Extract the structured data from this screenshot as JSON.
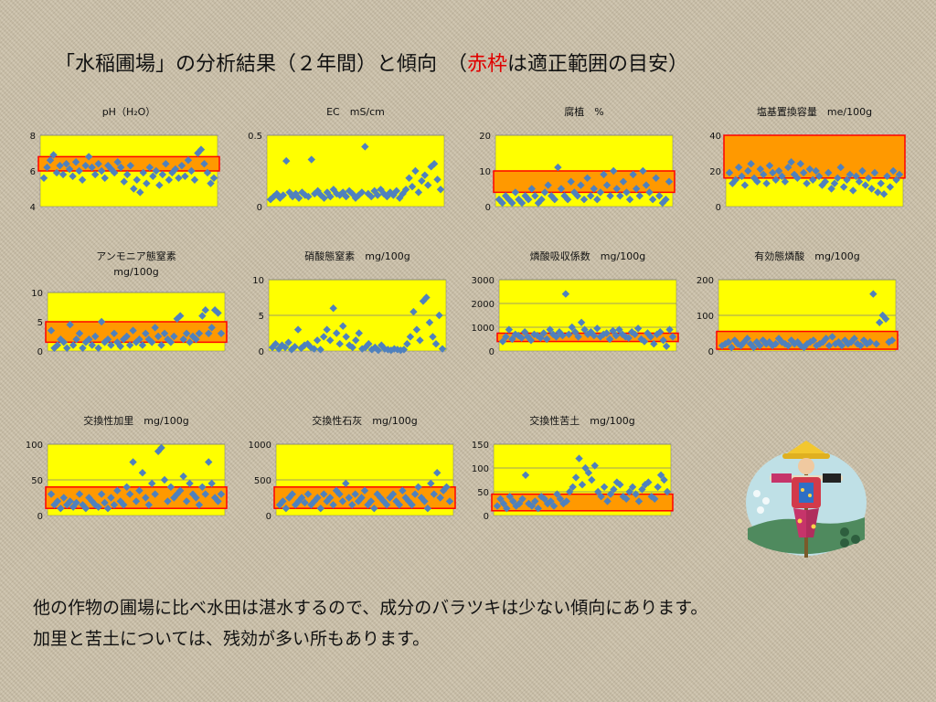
{
  "title": {
    "before": "「水稲圃場」の分析結果（２年間）と傾向　（",
    "highlight": "赤枠",
    "after": "は適正範囲の目安）"
  },
  "colors": {
    "plot_bg": "#ffff00",
    "marker": "#4f81bd",
    "range_fill": "#ff9900",
    "range_border": "#ff0000"
  },
  "footnote": {
    "line1": "他の作物の圃場に比べ水田は湛水するので、成分のバラツキは少ない傾向にあります。",
    "line2": "加里と苦土については、残効が多い所もあります。"
  },
  "illustration": {
    "name": "scarecrow-icon"
  },
  "chart_data": [
    {
      "type": "scatter",
      "title_lines": [
        "pH（H₂O）"
      ],
      "ylim": [
        4,
        8
      ],
      "yticks": [
        "4",
        "6",
        "8"
      ],
      "grid": true,
      "range": [
        6,
        6.8
      ],
      "values": [
        5.6,
        6.2,
        6.6,
        6.9,
        5.9,
        6.3,
        5.8,
        6.4,
        6.1,
        5.7,
        6.5,
        6.0,
        5.5,
        6.3,
        6.8,
        6.2,
        5.8,
        6.4,
        6.0,
        5.6,
        6.3,
        6.1,
        5.9,
        6.5,
        6.2,
        5.4,
        5.8,
        6.3,
        5.0,
        5.5,
        4.8,
        5.9,
        5.3,
        6.2,
        5.7,
        6.0,
        5.2,
        5.8,
        6.4,
        5.5,
        5.9,
        6.1,
        5.6,
        6.3,
        5.7,
        6.6,
        6.0,
        5.5,
        7.0,
        7.2,
        6.4,
        5.9,
        5.3,
        5.6
      ]
    },
    {
      "type": "scatter",
      "title_lines": [
        "EC　mS/cm"
      ],
      "ylim": [
        0,
        0.5
      ],
      "yticks": [
        "0",
        "0.5"
      ],
      "grid": true,
      "range": null,
      "values": [
        0.05,
        0.07,
        0.09,
        0.06,
        0.08,
        0.32,
        0.1,
        0.07,
        0.09,
        0.06,
        0.1,
        0.08,
        0.07,
        0.33,
        0.09,
        0.11,
        0.08,
        0.06,
        0.1,
        0.07,
        0.12,
        0.09,
        0.08,
        0.1,
        0.07,
        0.11,
        0.09,
        0.06,
        0.08,
        0.1,
        0.42,
        0.09,
        0.07,
        0.11,
        0.08,
        0.12,
        0.09,
        0.07,
        0.1,
        0.08,
        0.11,
        0.06,
        0.09,
        0.12,
        0.2,
        0.14,
        0.25,
        0.1,
        0.18,
        0.22,
        0.15,
        0.28,
        0.3,
        0.19,
        0.12
      ]
    },
    {
      "type": "scatter",
      "title_lines": [
        "腐植　%"
      ],
      "ylim": [
        0,
        20
      ],
      "yticks": [
        "0",
        "10",
        "20"
      ],
      "grid": true,
      "range": [
        4,
        10
      ],
      "values": [
        2,
        1,
        3,
        2,
        1,
        4,
        2,
        1,
        3,
        2,
        5,
        3,
        1,
        2,
        4,
        6,
        3,
        2,
        11,
        5,
        3,
        2,
        7,
        4,
        3,
        6,
        2,
        8,
        3,
        5,
        2,
        4,
        9,
        6,
        3,
        10,
        5,
        3,
        7,
        4,
        2,
        9,
        5,
        3,
        10,
        6,
        4,
        2,
        8,
        3,
        1,
        2,
        7
      ]
    },
    {
      "type": "scatter",
      "title_lines": [
        "塩基置換容量　me/100g"
      ],
      "ylim": [
        0,
        40
      ],
      "yticks": [
        "0",
        "20",
        "40"
      ],
      "grid": true,
      "range": [
        16,
        40
      ],
      "values": [
        19,
        13,
        15,
        22,
        17,
        12,
        20,
        24,
        16,
        14,
        21,
        18,
        13,
        23,
        19,
        15,
        20,
        17,
        14,
        22,
        25,
        18,
        16,
        24,
        19,
        13,
        21,
        15,
        20,
        17,
        12,
        14,
        19,
        10,
        13,
        16,
        22,
        11,
        15,
        18,
        9,
        17,
        14,
        20,
        12,
        16,
        10,
        19,
        8,
        13,
        7,
        17,
        11,
        20,
        15,
        18
      ]
    },
    {
      "type": "scatter",
      "title_lines": [
        "アンモニア態窒素",
        "mg/100g"
      ],
      "ylim": [
        0,
        10
      ],
      "yticks": [
        "0",
        "5",
        "10"
      ],
      "grid": true,
      "range": [
        1.5,
        5
      ],
      "values": [
        3.5,
        0.5,
        1,
        2,
        1.5,
        0.5,
        4.5,
        1,
        2,
        3,
        0.5,
        1.5,
        2,
        1,
        2.5,
        0.5,
        5,
        1.5,
        2,
        1,
        3,
        1.5,
        0.8,
        2,
        2.5,
        1,
        3.5,
        1.5,
        2,
        1,
        3,
        2,
        1.5,
        4,
        2.5,
        1,
        3,
        2,
        1.5,
        2.5,
        5.5,
        6,
        2,
        3,
        1.5,
        2.5,
        2,
        3,
        6,
        7,
        3,
        4,
        7,
        6.5,
        3
      ]
    },
    {
      "type": "scatter",
      "title_lines": [
        "硝酸態窒素　mg/100g"
      ],
      "ylim": [
        0,
        10
      ],
      "yticks": [
        "0",
        "5",
        "10"
      ],
      "grid": true,
      "range": null,
      "values": [
        0.5,
        1,
        0.3,
        0.8,
        0.5,
        1.2,
        0.2,
        0.6,
        3,
        0.4,
        0.8,
        1,
        0.5,
        0.3,
        1.5,
        0.2,
        2,
        3,
        1.5,
        6,
        2.5,
        1,
        3.5,
        2,
        0.8,
        0.5,
        1.5,
        2.5,
        0.3,
        0.5,
        1,
        0.2,
        0.5,
        0.1,
        0.8,
        0.3,
        0.2,
        0.1,
        0.3,
        0.2,
        0.1,
        0.2,
        1,
        2,
        5.5,
        3,
        1.5,
        7,
        7.5,
        4,
        2,
        1,
        5,
        0.3
      ]
    },
    {
      "type": "scatter",
      "title_lines": [
        "燐酸吸収係数　mg/100g"
      ],
      "ylim": [
        0,
        3000
      ],
      "yticks": [
        "0",
        "1000",
        "2000",
        "3000"
      ],
      "grid": true,
      "range": [
        400,
        750
      ],
      "values": [
        400,
        600,
        900,
        500,
        700,
        650,
        550,
        800,
        600,
        450,
        700,
        650,
        550,
        750,
        500,
        900,
        700,
        600,
        800,
        650,
        2400,
        700,
        1000,
        800,
        600,
        1200,
        900,
        700,
        800,
        650,
        950,
        600,
        700,
        750,
        500,
        850,
        650,
        900,
        700,
        600,
        550,
        800,
        700,
        950,
        500,
        400,
        750,
        600,
        300,
        700,
        800,
        450,
        200,
        900,
        600
      ]
    },
    {
      "type": "scatter",
      "title_lines": [
        "有効態燐酸　mg/100g"
      ],
      "ylim": [
        0,
        200
      ],
      "yticks": [
        "0",
        "100",
        "200"
      ],
      "grid": true,
      "range": [
        5,
        55
      ],
      "values": [
        15,
        20,
        25,
        10,
        30,
        20,
        15,
        25,
        35,
        20,
        10,
        25,
        15,
        30,
        20,
        25,
        15,
        20,
        35,
        25,
        20,
        15,
        30,
        20,
        25,
        15,
        10,
        20,
        25,
        30,
        15,
        20,
        25,
        35,
        15,
        40,
        20,
        25,
        15,
        30,
        20,
        25,
        35,
        20,
        15,
        30,
        20,
        25,
        160,
        20,
        80,
        100,
        90,
        25,
        30
      ]
    },
    {
      "type": "scatter",
      "title_lines": [
        "交換性加里　mg/100g"
      ],
      "ylim": [
        0,
        100
      ],
      "yticks": [
        "0",
        "50",
        "100"
      ],
      "grid": true,
      "range": [
        10,
        40
      ],
      "values": [
        30,
        15,
        20,
        10,
        25,
        15,
        20,
        12,
        18,
        30,
        15,
        10,
        25,
        20,
        15,
        12,
        30,
        18,
        10,
        25,
        15,
        35,
        20,
        15,
        40,
        30,
        75,
        20,
        35,
        60,
        25,
        15,
        45,
        30,
        90,
        95,
        50,
        20,
        40,
        25,
        30,
        35,
        55,
        20,
        45,
        30,
        25,
        15,
        40,
        30,
        75,
        45,
        25,
        20,
        30
      ]
    },
    {
      "type": "scatter",
      "title_lines": [
        "交換性石灰　mg/100g"
      ],
      "ylim": [
        0,
        1000
      ],
      "yticks": [
        "0",
        "500",
        "1000"
      ],
      "grid": true,
      "range": [
        100,
        400
      ],
      "values": [
        150,
        200,
        100,
        250,
        300,
        150,
        200,
        250,
        180,
        300,
        150,
        200,
        250,
        100,
        300,
        200,
        250,
        150,
        350,
        300,
        200,
        450,
        250,
        150,
        300,
        200,
        250,
        350,
        150,
        200,
        100,
        300,
        250,
        200,
        150,
        250,
        300,
        200,
        150,
        350,
        250,
        200,
        150,
        300,
        400,
        250,
        200,
        100,
        450,
        300,
        600,
        250,
        350,
        400,
        200
      ]
    },
    {
      "type": "scatter",
      "title_lines": [
        "交換性苦土　mg/100g"
      ],
      "ylim": [
        0,
        150
      ],
      "yticks": [
        "0",
        "50",
        "100",
        "150"
      ],
      "grid": true,
      "range": [
        10,
        45
      ],
      "values": [
        20,
        35,
        25,
        15,
        40,
        30,
        20,
        25,
        35,
        85,
        25,
        20,
        30,
        15,
        40,
        35,
        25,
        30,
        20,
        45,
        35,
        25,
        30,
        50,
        60,
        80,
        120,
        65,
        100,
        90,
        75,
        105,
        50,
        40,
        60,
        30,
        45,
        55,
        70,
        65,
        40,
        35,
        50,
        60,
        45,
        30,
        55,
        65,
        70,
        40,
        35,
        60,
        85,
        75,
        50
      ]
    }
  ]
}
